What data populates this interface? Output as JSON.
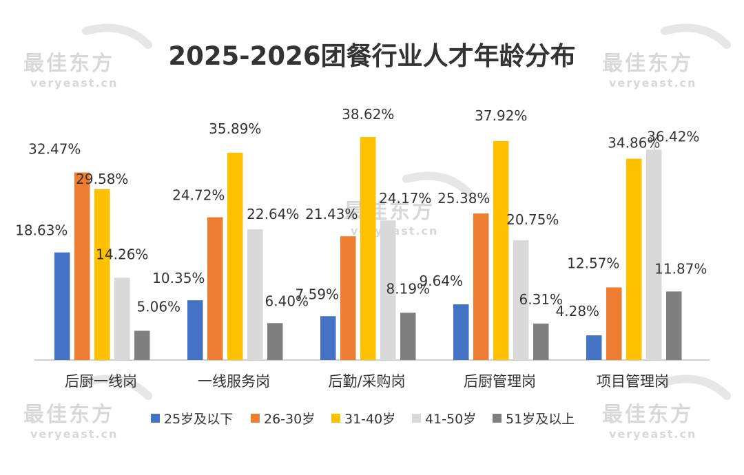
{
  "watermark": {
    "brand": "最佳东方",
    "url": "veryeast.cn"
  },
  "chart_data": {
    "type": "bar",
    "title": "2025-2026团餐行业人才年龄分布",
    "xlabel": "",
    "ylabel": "",
    "ylim": [
      0,
      45
    ],
    "grid": false,
    "legend_position": "bottom",
    "categories": [
      "后厨一线岗",
      "一线服务岗",
      "后勤/采购岗",
      "后厨管理岗",
      "项目管理岗"
    ],
    "series": [
      {
        "name": "25岁及以下",
        "color": "#4472c4",
        "values": [
          18.63,
          10.35,
          7.59,
          9.64,
          4.28
        ],
        "labels": [
          "18.63%",
          "10.35%",
          "7.59%",
          "9.64%",
          "4.28%"
        ]
      },
      {
        "name": "26-30岁",
        "color": "#ed7d31",
        "values": [
          32.47,
          24.72,
          21.43,
          25.38,
          12.57
        ],
        "labels": [
          "32.47%",
          "24.72%",
          "21.43%",
          "25.38%",
          "12.57%"
        ]
      },
      {
        "name": "31-40岁",
        "color": "#ffc000",
        "values": [
          29.58,
          35.89,
          38.62,
          37.92,
          34.86
        ],
        "labels": [
          "29.58%",
          "35.89%",
          "38.62%",
          "37.92%",
          "34.86%"
        ]
      },
      {
        "name": "41-50岁",
        "color": "#d9d9d9",
        "values": [
          14.26,
          22.64,
          24.17,
          20.75,
          36.42
        ],
        "labels": [
          "14.26%",
          "22.64%",
          "24.17%",
          "20.75%",
          "36.42%"
        ]
      },
      {
        "name": "51岁及以上",
        "color": "#7f7f7f",
        "values": [
          5.06,
          6.4,
          8.19,
          6.31,
          11.87
        ],
        "labels": [
          "5.06%",
          "6.40%",
          "8.19%",
          "6.31%",
          "11.87%"
        ]
      }
    ]
  }
}
